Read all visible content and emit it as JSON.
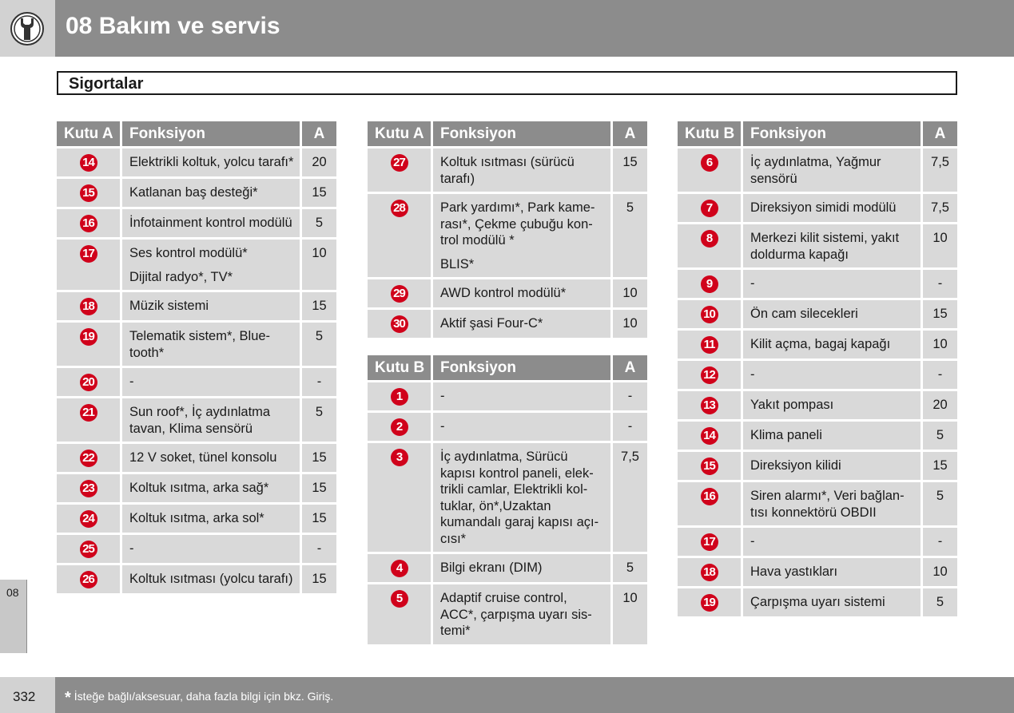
{
  "header": {
    "title": "08 Bakım ve servis",
    "icon": "wrench-icon"
  },
  "section": {
    "title": "Sigortalar"
  },
  "side_tab": {
    "label": "08"
  },
  "footer": {
    "page_number": "332",
    "note_star": "*",
    "note": "İsteğe bağlı/aksesuar, daha fazla bilgi için bkz. Giriş."
  },
  "colors": {
    "header_bg": "#8c8c8c",
    "cell_bg": "#d9d9d9",
    "badge": "#d0021b"
  },
  "tables": [
    {
      "headers": {
        "box": "Kutu A",
        "function": "Fonksiyon",
        "amp": "A"
      },
      "rows": [
        {
          "num": "14",
          "func": [
            "Elektrikli koltuk, yolcu tarafı*"
          ],
          "amp": "20"
        },
        {
          "num": "15",
          "func": [
            "Katlanan baş desteği*"
          ],
          "amp": "15"
        },
        {
          "num": "16",
          "func": [
            "İnfotainment kontrol modülü"
          ],
          "amp": "5"
        },
        {
          "num": "17",
          "func": [
            "Ses kontrol modülü*",
            "Dijital radyo*, TV*"
          ],
          "amp": "10"
        },
        {
          "num": "18",
          "func": [
            "Müzik sistemi"
          ],
          "amp": "15"
        },
        {
          "num": "19",
          "func": [
            "Telematik sistem*, Blue-tooth*"
          ],
          "amp": "5"
        },
        {
          "num": "20",
          "func": [
            "-"
          ],
          "amp": "-"
        },
        {
          "num": "21",
          "func": [
            "Sun roof*, İç aydınlatma tavan, Klima sensörü"
          ],
          "amp": "5"
        },
        {
          "num": "22",
          "func": [
            "12 V soket, tünel konsolu"
          ],
          "amp": "15"
        },
        {
          "num": "23",
          "func": [
            "Koltuk ısıtma, arka sağ*"
          ],
          "amp": "15"
        },
        {
          "num": "24",
          "func": [
            "Koltuk ısıtma, arka sol*"
          ],
          "amp": "15"
        },
        {
          "num": "25",
          "func": [
            "-"
          ],
          "amp": "-"
        },
        {
          "num": "26",
          "func": [
            "Koltuk ısıtması (yolcu tarafı)"
          ],
          "amp": "15"
        }
      ]
    },
    {
      "headers": {
        "box": "Kutu A",
        "function": "Fonksiyon",
        "amp": "A"
      },
      "rows": [
        {
          "num": "27",
          "func": [
            "Koltuk ısıtması (sürücü tarafı)"
          ],
          "amp": "15"
        },
        {
          "num": "28",
          "func": [
            "Park yardımı*, Park kame-rası*, Çekme çubuğu kon-trol modülü *",
            "BLIS*"
          ],
          "amp": "5"
        },
        {
          "num": "29",
          "func": [
            "AWD kontrol modülü*"
          ],
          "amp": "10"
        },
        {
          "num": "30",
          "func": [
            "Aktif şasi Four-C*"
          ],
          "amp": "10"
        }
      ]
    },
    {
      "headers": {
        "box": "Kutu B",
        "function": "Fonksiyon",
        "amp": "A"
      },
      "rows": [
        {
          "num": "1",
          "func": [
            "-"
          ],
          "amp": "-"
        },
        {
          "num": "2",
          "func": [
            "-"
          ],
          "amp": "-"
        },
        {
          "num": "3",
          "func": [
            "İç aydınlatma, Sürücü kapısı kontrol paneli, elek-trikli camlar, Elektrikli kol-tuklar, ön*,Uzaktan kumandalı garaj kapısı açı-cısı*"
          ],
          "amp": "7,5"
        },
        {
          "num": "4",
          "func": [
            "Bilgi ekranı (DIM)"
          ],
          "amp": "5"
        },
        {
          "num": "5",
          "func": [
            "Adaptif cruise control, ACC*, çarpışma uyarı sis-temi*"
          ],
          "amp": "10"
        }
      ]
    },
    {
      "headers": {
        "box": "Kutu B",
        "function": "Fonksiyon",
        "amp": "A"
      },
      "rows": [
        {
          "num": "6",
          "func": [
            "İç aydınlatma, Yağmur sensörü"
          ],
          "amp": "7,5"
        },
        {
          "num": "7",
          "func": [
            "Direksiyon simidi modülü"
          ],
          "amp": "7,5"
        },
        {
          "num": "8",
          "func": [
            "Merkezi kilit sistemi, yakıt doldurma kapağı"
          ],
          "amp": "10"
        },
        {
          "num": "9",
          "func": [
            "-"
          ],
          "amp": "-"
        },
        {
          "num": "10",
          "func": [
            "Ön cam silecekleri"
          ],
          "amp": "15"
        },
        {
          "num": "11",
          "func": [
            "Kilit açma, bagaj kapağı"
          ],
          "amp": "10"
        },
        {
          "num": "12",
          "func": [
            "-"
          ],
          "amp": "-"
        },
        {
          "num": "13",
          "func": [
            "Yakıt pompası"
          ],
          "amp": "20"
        },
        {
          "num": "14",
          "func": [
            "Klima paneli"
          ],
          "amp": "5"
        },
        {
          "num": "15",
          "func": [
            "Direksiyon kilidi"
          ],
          "amp": "15"
        },
        {
          "num": "16",
          "func": [
            "Siren alarmı*, Veri bağlan-tısı konnektörü OBDII"
          ],
          "amp": "5"
        },
        {
          "num": "17",
          "func": [
            "-"
          ],
          "amp": "-"
        },
        {
          "num": "18",
          "func": [
            "Hava yastıkları"
          ],
          "amp": "10"
        },
        {
          "num": "19",
          "func": [
            "Çarpışma uyarı sistemi"
          ],
          "amp": "5"
        }
      ]
    }
  ]
}
